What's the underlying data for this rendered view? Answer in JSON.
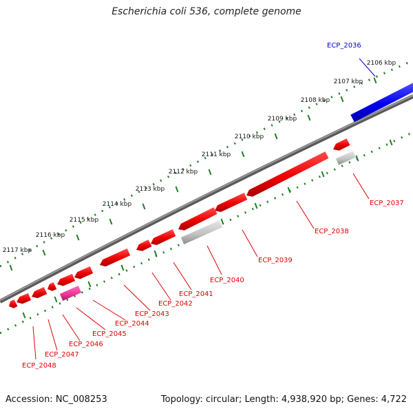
{
  "title": "Escherichia coli 536, complete genome",
  "footer": {
    "accession": "Accession: NC_008253",
    "topology": "Topology: circular; Length: 4,938,920 bp; Genes: 4,722"
  },
  "colors": {
    "backbone": "#808080",
    "scale": "#1e7d1e",
    "forward_gene": "#0000ff",
    "reverse_gene": "#ff0000",
    "rna_gene": "#ff3399",
    "pseudo_gene": "#c0c0c0"
  },
  "scale_labels": [
    "2106 kbp",
    "2107 kbp",
    "2108 kbp",
    "2109 kbp",
    "2110 kbp",
    "2111 kbp",
    "2112 kbp",
    "2113 kbp",
    "2114 kbp",
    "2115 kbp",
    "2116 kbp",
    "2117 kbp"
  ],
  "forward_genes": [
    {
      "label": "ECP_2036",
      "color": "#0000ff"
    }
  ],
  "reverse_genes": [
    {
      "label": "ECP_2037",
      "color": "#c0c0c0"
    },
    {
      "label": "ECP_2038",
      "color": "#ff0000"
    },
    {
      "label": "ECP_2039",
      "color": "#ff0000"
    },
    {
      "label": "ECP_2040",
      "color": "#c0c0c0"
    },
    {
      "label": "ECP_2041",
      "color": "#ff0000"
    },
    {
      "label": "ECP_2042",
      "color": "#ff0000"
    },
    {
      "label": "ECP_2043",
      "color": "#ff0000"
    },
    {
      "label": "ECP_2044",
      "color": "#ff0000"
    },
    {
      "label": "ECP_2045",
      "color": "#ff3399"
    },
    {
      "label": "ECP_2046",
      "color": "#ff0000"
    },
    {
      "label": "ECP_2047",
      "color": "#ff0000"
    },
    {
      "label": "ECP_2048",
      "color": "#ff0000"
    }
  ]
}
